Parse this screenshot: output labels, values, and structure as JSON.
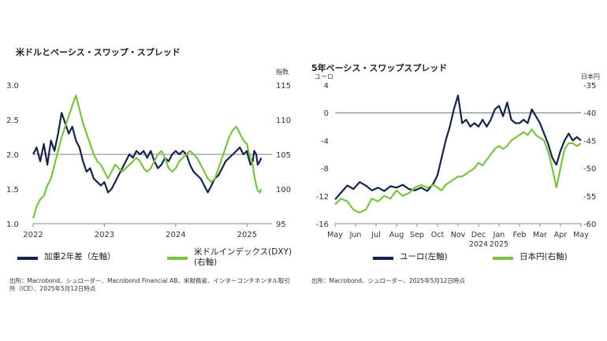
{
  "colors": {
    "navy": "#15234a",
    "green": "#7cc242",
    "axis": "#888888",
    "text": "#333333"
  },
  "charts": [
    {
      "title": "米ドルとベーシス・スワップ・スプレッド",
      "left_unit": "",
      "right_unit": "指数",
      "legend": [
        {
          "label": "加重2年差（左軸）",
          "color": "#15234a"
        },
        {
          "label": "米ドルインデックス(DXY)\n(右軸)",
          "color": "#7cc242"
        }
      ],
      "source": "出所：Macrobond、シュローダー、Macrobond Financial AB、米財務省、インターコンチネンタル取引所（ICE）、2025年5月12日時点"
    },
    {
      "title": "5年ベーシス・スワップスプレッド",
      "left_unit": "ユーロ",
      "right_unit": "日本円",
      "legend": [
        {
          "label": "ユーロ(左軸)",
          "color": "#15234a"
        },
        {
          "label": "日本円(右軸)",
          "color": "#7cc242"
        }
      ],
      "source": "出所：Macrobond、シュローダー、2025年5月12日時点"
    }
  ],
  "chart_data": [
    {
      "type": "line",
      "title": "米ドルとベーシス・スワップ・スプレッド",
      "x": [
        "2022",
        "2023",
        "2024",
        "2025"
      ],
      "x_range": [
        2022.0,
        2025.35
      ],
      "y_left": {
        "ticks": [
          "3.0",
          "2.5",
          "2.0",
          "1.5",
          "1.0"
        ],
        "range": [
          1.0,
          3.0
        ]
      },
      "y_right": {
        "label": "指数",
        "ticks": [
          "115",
          "110",
          "105",
          "100",
          "95"
        ],
        "range": [
          95,
          115
        ]
      },
      "series": [
        {
          "name": "加重2年差（左軸）",
          "axis": "left",
          "color": "#15234a",
          "points": [
            [
              2022.0,
              2.0
            ],
            [
              2022.05,
              2.1
            ],
            [
              2022.1,
              1.9
            ],
            [
              2022.15,
              2.15
            ],
            [
              2022.2,
              1.85
            ],
            [
              2022.25,
              2.2
            ],
            [
              2022.3,
              2.05
            ],
            [
              2022.35,
              2.3
            ],
            [
              2022.4,
              2.6
            ],
            [
              2022.45,
              2.45
            ],
            [
              2022.5,
              2.3
            ],
            [
              2022.55,
              2.4
            ],
            [
              2022.6,
              2.2
            ],
            [
              2022.65,
              2.1
            ],
            [
              2022.7,
              1.9
            ],
            [
              2022.75,
              1.75
            ],
            [
              2022.8,
              1.8
            ],
            [
              2022.85,
              1.65
            ],
            [
              2022.9,
              1.6
            ],
            [
              2022.95,
              1.55
            ],
            [
              2023.0,
              1.6
            ],
            [
              2023.05,
              1.45
            ],
            [
              2023.1,
              1.5
            ],
            [
              2023.15,
              1.6
            ],
            [
              2023.2,
              1.7
            ],
            [
              2023.25,
              1.8
            ],
            [
              2023.3,
              1.9
            ],
            [
              2023.35,
              2.0
            ],
            [
              2023.4,
              1.95
            ],
            [
              2023.45,
              2.05
            ],
            [
              2023.5,
              2.0
            ],
            [
              2023.55,
              2.05
            ],
            [
              2023.6,
              1.95
            ],
            [
              2023.65,
              2.05
            ],
            [
              2023.7,
              1.9
            ],
            [
              2023.75,
              1.8
            ],
            [
              2023.8,
              1.85
            ],
            [
              2023.85,
              1.95
            ],
            [
              2023.9,
              1.9
            ],
            [
              2023.95,
              2.0
            ],
            [
              2024.0,
              2.05
            ],
            [
              2024.05,
              2.0
            ],
            [
              2024.1,
              2.05
            ],
            [
              2024.15,
              2.0
            ],
            [
              2024.2,
              1.85
            ],
            [
              2024.25,
              1.75
            ],
            [
              2024.3,
              1.7
            ],
            [
              2024.35,
              1.65
            ],
            [
              2024.4,
              1.55
            ],
            [
              2024.45,
              1.45
            ],
            [
              2024.5,
              1.55
            ],
            [
              2024.55,
              1.65
            ],
            [
              2024.6,
              1.7
            ],
            [
              2024.65,
              1.8
            ],
            [
              2024.7,
              1.9
            ],
            [
              2024.75,
              1.95
            ],
            [
              2024.8,
              2.0
            ],
            [
              2024.85,
              2.05
            ],
            [
              2024.9,
              2.1
            ],
            [
              2024.95,
              2.0
            ],
            [
              2025.0,
              2.05
            ],
            [
              2025.02,
              1.95
            ],
            [
              2025.05,
              1.85
            ],
            [
              2025.08,
              1.9
            ],
            [
              2025.1,
              2.05
            ],
            [
              2025.13,
              2.0
            ],
            [
              2025.15,
              1.85
            ],
            [
              2025.18,
              1.9
            ],
            [
              2025.2,
              1.95
            ]
          ]
        },
        {
          "name": "米ドルインデックス(DXY)(右軸)",
          "axis": "right",
          "color": "#7cc242",
          "points": [
            [
              2022.0,
              95.8
            ],
            [
              2022.05,
              97.5
            ],
            [
              2022.1,
              98.5
            ],
            [
              2022.15,
              99.0
            ],
            [
              2022.2,
              100.5
            ],
            [
              2022.25,
              101.5
            ],
            [
              2022.3,
              103.5
            ],
            [
              2022.35,
              105.5
            ],
            [
              2022.4,
              107.5
            ],
            [
              2022.45,
              109.0
            ],
            [
              2022.5,
              110.5
            ],
            [
              2022.55,
              112.0
            ],
            [
              2022.6,
              113.5
            ],
            [
              2022.65,
              111.5
            ],
            [
              2022.7,
              109.5
            ],
            [
              2022.75,
              108.0
            ],
            [
              2022.8,
              106.5
            ],
            [
              2022.85,
              105.0
            ],
            [
              2022.9,
              104.0
            ],
            [
              2022.95,
              103.5
            ],
            [
              2023.0,
              102.5
            ],
            [
              2023.05,
              101.5
            ],
            [
              2023.1,
              102.5
            ],
            [
              2023.15,
              103.5
            ],
            [
              2023.2,
              103.0
            ],
            [
              2023.25,
              102.5
            ],
            [
              2023.3,
              103.0
            ],
            [
              2023.35,
              103.5
            ],
            [
              2023.4,
              104.0
            ],
            [
              2023.45,
              104.5
            ],
            [
              2023.5,
              104.0
            ],
            [
              2023.55,
              103.0
            ],
            [
              2023.6,
              102.5
            ],
            [
              2023.65,
              103.0
            ],
            [
              2023.7,
              104.0
            ],
            [
              2023.75,
              105.0
            ],
            [
              2023.8,
              105.5
            ],
            [
              2023.85,
              104.5
            ],
            [
              2023.9,
              103.0
            ],
            [
              2023.95,
              102.5
            ],
            [
              2024.0,
              103.0
            ],
            [
              2024.05,
              104.0
            ],
            [
              2024.1,
              104.5
            ],
            [
              2024.15,
              105.0
            ],
            [
              2024.2,
              105.5
            ],
            [
              2024.25,
              105.0
            ],
            [
              2024.3,
              104.5
            ],
            [
              2024.35,
              103.5
            ],
            [
              2024.4,
              102.5
            ],
            [
              2024.45,
              101.5
            ],
            [
              2024.5,
              101.0
            ],
            [
              2024.55,
              101.5
            ],
            [
              2024.6,
              103.0
            ],
            [
              2024.65,
              104.5
            ],
            [
              2024.7,
              106.0
            ],
            [
              2024.75,
              107.5
            ],
            [
              2024.8,
              108.5
            ],
            [
              2024.85,
              109.0
            ],
            [
              2024.9,
              108.0
            ],
            [
              2024.95,
              107.0
            ],
            [
              2025.0,
              106.5
            ],
            [
              2025.02,
              105.5
            ],
            [
              2025.05,
              104.5
            ],
            [
              2025.08,
              103.5
            ],
            [
              2025.1,
              102.0
            ],
            [
              2025.13,
              100.5
            ],
            [
              2025.15,
              99.8
            ],
            [
              2025.18,
              99.5
            ],
            [
              2025.2,
              100.0
            ]
          ]
        }
      ]
    },
    {
      "type": "line",
      "title": "5年ベーシス・スワップスプレッド",
      "x_ticks": [
        "May",
        "Jun",
        "Jul",
        "Aug",
        "Sep",
        "Oct",
        "Nov",
        "Dec",
        "Jan",
        "Feb",
        "Mar",
        "Apr",
        "May"
      ],
      "x_sublabels": {
        "Dec": "2024",
        "Jan": "2025"
      },
      "x_range": [
        0,
        12
      ],
      "y_left": {
        "label": "ユーロ",
        "ticks": [
          "4",
          "0",
          "-4",
          "-8",
          "-12",
          "-16"
        ],
        "range": [
          -16,
          4
        ]
      },
      "y_right": {
        "label": "日本円",
        "ticks": [
          "-35",
          "-40",
          "-45",
          "-50",
          "-55",
          "-60"
        ],
        "range": [
          -60,
          -35
        ]
      },
      "series": [
        {
          "name": "ユーロ(左軸)",
          "axis": "left",
          "color": "#15234a",
          "points": [
            [
              0.0,
              -12.5
            ],
            [
              0.3,
              -11.5
            ],
            [
              0.6,
              -10.5
            ],
            [
              0.9,
              -11.0
            ],
            [
              1.2,
              -10.0
            ],
            [
              1.5,
              -10.5
            ],
            [
              1.8,
              -11.2
            ],
            [
              2.1,
              -10.8
            ],
            [
              2.4,
              -11.3
            ],
            [
              2.7,
              -10.6
            ],
            [
              3.0,
              -10.8
            ],
            [
              3.3,
              -10.4
            ],
            [
              3.6,
              -11.0
            ],
            [
              3.9,
              -11.2
            ],
            [
              4.2,
              -10.8
            ],
            [
              4.5,
              -11.3
            ],
            [
              4.8,
              -10.2
            ],
            [
              5.0,
              -9.0
            ],
            [
              5.2,
              -6.5
            ],
            [
              5.4,
              -4.0
            ],
            [
              5.6,
              -2.0
            ],
            [
              5.8,
              0.5
            ],
            [
              6.0,
              2.5
            ],
            [
              6.2,
              -1.5
            ],
            [
              6.4,
              -1.0
            ],
            [
              6.6,
              -2.0
            ],
            [
              6.8,
              -1.5
            ],
            [
              7.0,
              -2.0
            ],
            [
              7.2,
              -1.0
            ],
            [
              7.4,
              -2.0
            ],
            [
              7.6,
              -1.0
            ],
            [
              7.8,
              0.5
            ],
            [
              8.0,
              1.0
            ],
            [
              8.2,
              -0.5
            ],
            [
              8.4,
              1.5
            ],
            [
              8.6,
              -1.0
            ],
            [
              8.8,
              -1.5
            ],
            [
              9.0,
              -1.5
            ],
            [
              9.2,
              -1.0
            ],
            [
              9.4,
              -1.5
            ],
            [
              9.6,
              0.5
            ],
            [
              9.8,
              -0.5
            ],
            [
              10.0,
              -1.5
            ],
            [
              10.2,
              -3.0
            ],
            [
              10.4,
              -4.5
            ],
            [
              10.6,
              -6.5
            ],
            [
              10.8,
              -7.5
            ],
            [
              11.0,
              -5.5
            ],
            [
              11.2,
              -4.0
            ],
            [
              11.4,
              -3.0
            ],
            [
              11.6,
              -4.0
            ],
            [
              11.8,
              -3.5
            ],
            [
              12.0,
              -4.0
            ]
          ]
        },
        {
          "name": "日本円(右軸)",
          "axis": "right",
          "color": "#7cc242",
          "points": [
            [
              0.0,
              -56.5
            ],
            [
              0.3,
              -55.5
            ],
            [
              0.6,
              -56.0
            ],
            [
              0.9,
              -57.5
            ],
            [
              1.2,
              -58.0
            ],
            [
              1.5,
              -57.5
            ],
            [
              1.8,
              -55.5
            ],
            [
              2.1,
              -56.0
            ],
            [
              2.4,
              -55.0
            ],
            [
              2.7,
              -55.5
            ],
            [
              3.0,
              -54.0
            ],
            [
              3.3,
              -55.0
            ],
            [
              3.6,
              -54.5
            ],
            [
              3.9,
              -53.5
            ],
            [
              4.2,
              -53.0
            ],
            [
              4.5,
              -53.5
            ],
            [
              4.8,
              -53.0
            ],
            [
              5.0,
              -53.5
            ],
            [
              5.2,
              -54.0
            ],
            [
              5.4,
              -53.0
            ],
            [
              5.6,
              -52.5
            ],
            [
              5.8,
              -52.0
            ],
            [
              6.0,
              -51.5
            ],
            [
              6.2,
              -51.5
            ],
            [
              6.4,
              -51.0
            ],
            [
              6.6,
              -50.5
            ],
            [
              6.8,
              -50.0
            ],
            [
              7.0,
              -49.0
            ],
            [
              7.2,
              -49.5
            ],
            [
              7.4,
              -48.5
            ],
            [
              7.6,
              -47.5
            ],
            [
              7.8,
              -46.5
            ],
            [
              8.0,
              -46.0
            ],
            [
              8.2,
              -46.5
            ],
            [
              8.4,
              -46.0
            ],
            [
              8.6,
              -45.0
            ],
            [
              8.8,
              -44.5
            ],
            [
              9.0,
              -44.0
            ],
            [
              9.2,
              -43.5
            ],
            [
              9.4,
              -44.0
            ],
            [
              9.6,
              -43.0
            ],
            [
              9.8,
              -44.0
            ],
            [
              10.0,
              -44.5
            ],
            [
              10.2,
              -45.0
            ],
            [
              10.4,
              -47.0
            ],
            [
              10.6,
              -50.0
            ],
            [
              10.8,
              -53.5
            ],
            [
              11.0,
              -50.0
            ],
            [
              11.2,
              -46.5
            ],
            [
              11.4,
              -45.5
            ],
            [
              11.6,
              -45.5
            ],
            [
              11.8,
              -46.0
            ],
            [
              12.0,
              -45.5
            ]
          ]
        }
      ]
    }
  ]
}
